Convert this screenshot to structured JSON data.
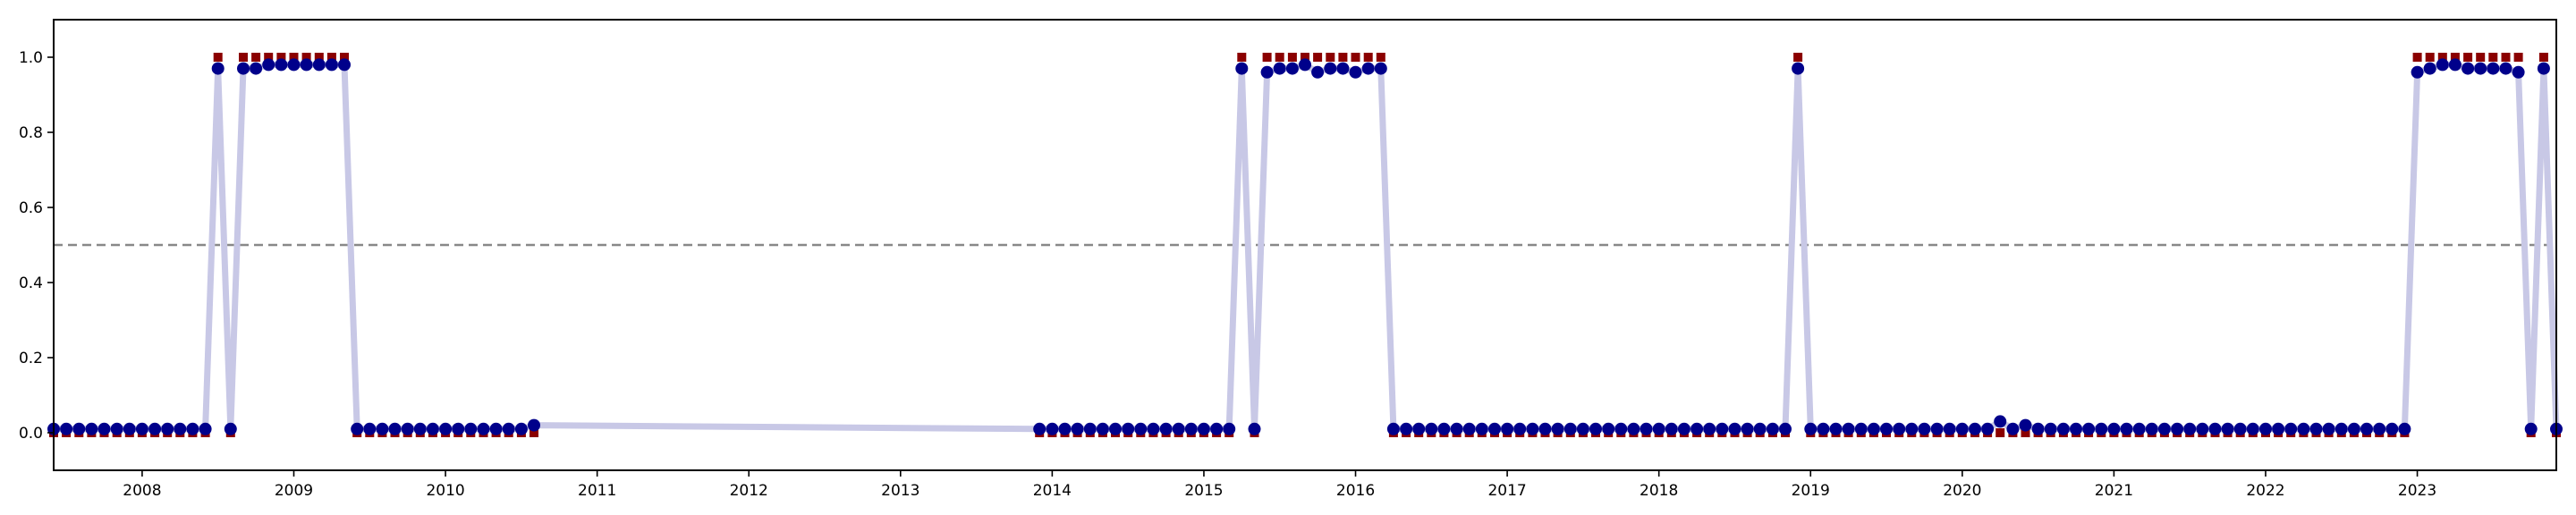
{
  "chart_data": {
    "type": "line",
    "title": "",
    "xlabel": "",
    "ylabel": "",
    "xlim": [
      "2007-06-01",
      "2023-12-01"
    ],
    "ylim": [
      -0.1,
      1.1
    ],
    "x_ticks": [
      "2008",
      "2009",
      "2010",
      "2011",
      "2012",
      "2013",
      "2014",
      "2015",
      "2016",
      "2017",
      "2018",
      "2019",
      "2020",
      "2021",
      "2022",
      "2023"
    ],
    "y_ticks": [
      "0.0",
      "0.2",
      "0.4",
      "0.6",
      "0.8",
      "1.0"
    ],
    "threshold": 0.5,
    "grid": false,
    "legend": "none",
    "colors": {
      "line": "#c8c8e6",
      "predicted": "#00008b",
      "actual": "#8b0000",
      "threshold": "#888888"
    },
    "series": [
      {
        "x": [
          "2007-06",
          "2007-07",
          "2007-08",
          "2007-09",
          "2007-10",
          "2007-11",
          "2007-12",
          "2008-01",
          "2008-02",
          "2008-03",
          "2008-04",
          "2008-05",
          "2008-06",
          "2008-07",
          "2008-08",
          "2008-09",
          "2008-10",
          "2008-11",
          "2008-12",
          "2009-01",
          "2009-02",
          "2009-03",
          "2009-04",
          "2009-05",
          "2009-06",
          "2009-07",
          "2009-08",
          "2009-09",
          "2009-10",
          "2009-11",
          "2009-12",
          "2010-01",
          "2010-02",
          "2010-03",
          "2010-04",
          "2010-05",
          "2010-06",
          "2010-07",
          "2010-08",
          "2013-12",
          "2014-01",
          "2014-02",
          "2014-03",
          "2014-04",
          "2014-05",
          "2014-06",
          "2014-07",
          "2014-08",
          "2014-09",
          "2014-10",
          "2014-11",
          "2014-12",
          "2015-01",
          "2015-02",
          "2015-03",
          "2015-04",
          "2015-05",
          "2015-06",
          "2015-07",
          "2015-08",
          "2015-09",
          "2015-10",
          "2015-11",
          "2015-12",
          "2016-01",
          "2016-02",
          "2016-03",
          "2016-04",
          "2016-05",
          "2016-06",
          "2016-07",
          "2016-08",
          "2016-09",
          "2016-10",
          "2016-11",
          "2016-12",
          "2017-01",
          "2017-02",
          "2017-03",
          "2017-04",
          "2017-05",
          "2017-06",
          "2017-07",
          "2017-08",
          "2017-09",
          "2017-10",
          "2017-11",
          "2017-12",
          "2018-01",
          "2018-02",
          "2018-03",
          "2018-04",
          "2018-05",
          "2018-06",
          "2018-07",
          "2018-08",
          "2018-09",
          "2018-10",
          "2018-11",
          "2018-12",
          "2019-01",
          "2019-02",
          "2019-03",
          "2019-04",
          "2019-05",
          "2019-06",
          "2019-07",
          "2019-08",
          "2019-09",
          "2019-10",
          "2019-11",
          "2019-12",
          "2020-01",
          "2020-02",
          "2020-03",
          "2020-04",
          "2020-05",
          "2020-06",
          "2020-07",
          "2020-08",
          "2020-09",
          "2020-10",
          "2020-11",
          "2020-12",
          "2021-01",
          "2021-02",
          "2021-03",
          "2021-04",
          "2021-05",
          "2021-06",
          "2021-07",
          "2021-08",
          "2021-09",
          "2021-10",
          "2021-11",
          "2021-12",
          "2022-01",
          "2022-02",
          "2022-03",
          "2022-04",
          "2022-05",
          "2022-06",
          "2022-07",
          "2022-08",
          "2022-09",
          "2022-10",
          "2022-11",
          "2022-12",
          "2023-01",
          "2023-02",
          "2023-03",
          "2023-04",
          "2023-05",
          "2023-06",
          "2023-07",
          "2023-08",
          "2023-09",
          "2023-10",
          "2023-11",
          "2023-12"
        ],
        "predicted": [
          0.01,
          0.01,
          0.01,
          0.01,
          0.01,
          0.01,
          0.01,
          0.01,
          0.01,
          0.01,
          0.01,
          0.01,
          0.01,
          0.97,
          0.01,
          0.97,
          0.97,
          0.98,
          0.98,
          0.98,
          0.98,
          0.98,
          0.98,
          0.98,
          0.01,
          0.01,
          0.01,
          0.01,
          0.01,
          0.01,
          0.01,
          0.01,
          0.01,
          0.01,
          0.01,
          0.01,
          0.01,
          0.01,
          0.02,
          0.01,
          0.01,
          0.01,
          0.01,
          0.01,
          0.01,
          0.01,
          0.01,
          0.01,
          0.01,
          0.01,
          0.01,
          0.01,
          0.01,
          0.01,
          0.01,
          0.97,
          0.01,
          0.96,
          0.97,
          0.97,
          0.98,
          0.96,
          0.97,
          0.97,
          0.96,
          0.97,
          0.97,
          0.01,
          0.01,
          0.01,
          0.01,
          0.01,
          0.01,
          0.01,
          0.01,
          0.01,
          0.01,
          0.01,
          0.01,
          0.01,
          0.01,
          0.01,
          0.01,
          0.01,
          0.01,
          0.01,
          0.01,
          0.01,
          0.01,
          0.01,
          0.01,
          0.01,
          0.01,
          0.01,
          0.01,
          0.01,
          0.01,
          0.01,
          0.01,
          0.97,
          0.01,
          0.01,
          0.01,
          0.01,
          0.01,
          0.01,
          0.01,
          0.01,
          0.01,
          0.01,
          0.01,
          0.01,
          0.01,
          0.01,
          0.01,
          0.03,
          0.01,
          0.02,
          0.01,
          0.01,
          0.01,
          0.01,
          0.01,
          0.01,
          0.01,
          0.01,
          0.01,
          0.01,
          0.01,
          0.01,
          0.01,
          0.01,
          0.01,
          0.01,
          0.01,
          0.01,
          0.01,
          0.01,
          0.01,
          0.01,
          0.01,
          0.01,
          0.01,
          0.01,
          0.01,
          0.01,
          0.01,
          0.01,
          0.96,
          0.97,
          0.98,
          0.98,
          0.97,
          0.97,
          0.97,
          0.97,
          0.96,
          0.01,
          0.97,
          0.01,
          0.01
        ],
        "actual": [
          0,
          0,
          0,
          0,
          0,
          0,
          0,
          0,
          0,
          0,
          0,
          0,
          0,
          1,
          0,
          1,
          1,
          1,
          1,
          1,
          1,
          1,
          1,
          1,
          0,
          0,
          0,
          0,
          0,
          0,
          0,
          0,
          0,
          0,
          0,
          0,
          0,
          0,
          0,
          0,
          0,
          0,
          0,
          0,
          0,
          0,
          0,
          0,
          0,
          0,
          0,
          0,
          0,
          0,
          0,
          1,
          0,
          1,
          1,
          1,
          1,
          1,
          1,
          1,
          1,
          1,
          1,
          0,
          0,
          0,
          0,
          0,
          0,
          0,
          0,
          0,
          0,
          0,
          0,
          0,
          0,
          0,
          0,
          0,
          0,
          0,
          0,
          0,
          0,
          0,
          0,
          0,
          0,
          0,
          0,
          0,
          0,
          0,
          0,
          1,
          0,
          0,
          0,
          0,
          0,
          0,
          0,
          0,
          0,
          0,
          0,
          0,
          0,
          0,
          0,
          0,
          0,
          0,
          0,
          0,
          0,
          0,
          0,
          0,
          0,
          0,
          0,
          0,
          0,
          0,
          0,
          0,
          0,
          0,
          0,
          0,
          0,
          0,
          0,
          0,
          0,
          0,
          0,
          0,
          0,
          0,
          0,
          0,
          1,
          1,
          1,
          1,
          1,
          1,
          1,
          1,
          1,
          0,
          1,
          0,
          0
        ]
      }
    ]
  }
}
